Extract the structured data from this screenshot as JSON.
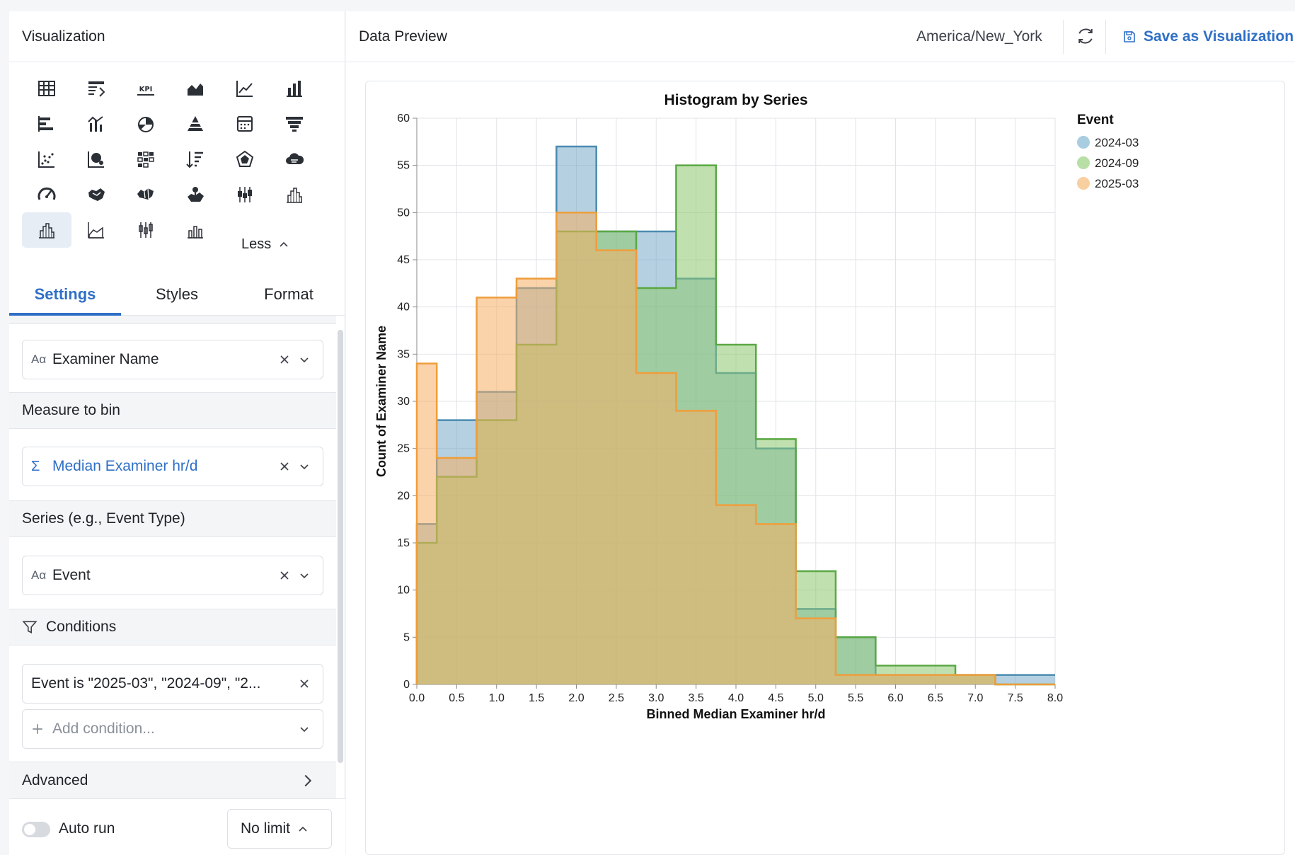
{
  "left_panel": {
    "title": "Visualization",
    "less_label": "Less",
    "viz_types": [
      {
        "icon": "table-icon"
      },
      {
        "icon": "pivot-table-icon"
      },
      {
        "icon": "kpi-icon",
        "label": "KPI"
      },
      {
        "icon": "area-chart-icon"
      },
      {
        "icon": "line-chart-icon"
      },
      {
        "icon": "bar-chart-icon"
      },
      {
        "icon": "horizontal-bar-icon"
      },
      {
        "icon": "combo-chart-icon"
      },
      {
        "icon": "pie-chart-icon"
      },
      {
        "icon": "pyramid-icon"
      },
      {
        "icon": "calendar-icon"
      },
      {
        "icon": "funnel-icon"
      },
      {
        "icon": "scatter-icon"
      },
      {
        "icon": "bubble-icon"
      },
      {
        "icon": "heatmap-icon"
      },
      {
        "icon": "sorted-bar-icon"
      },
      {
        "icon": "radar-icon"
      },
      {
        "icon": "word-cloud-icon"
      },
      {
        "icon": "gauge-icon"
      },
      {
        "icon": "map-icon"
      },
      {
        "icon": "region-map-icon"
      },
      {
        "icon": "geo-map-icon"
      },
      {
        "icon": "box-plot-icon"
      },
      {
        "icon": "histogram-icon"
      },
      {
        "icon": "histogram-selected-icon",
        "selected": true
      },
      {
        "icon": "area-line-icon"
      },
      {
        "icon": "box-plot-alt-icon"
      },
      {
        "icon": "step-bar-icon"
      }
    ],
    "tabs": [
      "Settings",
      "Styles",
      "Format"
    ],
    "active_tab": "Settings",
    "fields": {
      "category": {
        "type": "Aα",
        "value": "Examiner Name"
      },
      "measure_section": "Measure to bin",
      "measure": {
        "type": "Σ",
        "value": "Median Examiner hr/d"
      },
      "series_section": "Series (e.g., Event Type)",
      "series": {
        "type": "Aα",
        "value": "Event"
      },
      "conditions_section": "Conditions",
      "condition": "Event is \"2025-03\", \"2024-09\", \"2...",
      "add_condition_placeholder": "Add condition...",
      "advanced_section": "Advanced"
    },
    "bottom": {
      "auto_run_label": "Auto run",
      "auto_run": false,
      "limit": "No limit"
    }
  },
  "right_panel": {
    "title": "Data Preview",
    "timezone": "America/New_York",
    "save_label": "Save as Visualization"
  },
  "colors": {
    "accent": "#2f6fc6",
    "series_2024_03": "#4a8bb0",
    "series_2024_09": "#5aa844",
    "series_2025_03": "#ef9e3c"
  },
  "chart_data": {
    "type": "histogram",
    "title": "Histogram by Series",
    "xlabel": "Binned Median Examiner hr/d",
    "ylabel": "Count of Examiner Name",
    "legend_title": "Event",
    "legend_position": "top-right",
    "xlim": [
      0,
      8
    ],
    "ylim": [
      0,
      60
    ],
    "x_ticks": [
      "0.0",
      "0.5",
      "1.0",
      "1.5",
      "2.0",
      "2.5",
      "3.0",
      "3.5",
      "4.0",
      "4.5",
      "5.0",
      "5.5",
      "6.0",
      "6.5",
      "7.0",
      "7.5",
      "8.0"
    ],
    "y_ticks": [
      "0",
      "5",
      "10",
      "15",
      "20",
      "25",
      "30",
      "35",
      "40",
      "45",
      "50",
      "55",
      "60"
    ],
    "grid": true,
    "bin_edges": [
      0,
      0.25,
      0.75,
      1.25,
      1.75,
      2.25,
      2.75,
      3.25,
      3.75,
      4.25,
      4.75,
      5.25,
      5.75,
      6.25,
      6.75,
      7.25,
      7.75,
      8.0
    ],
    "series": [
      {
        "name": "2024-03",
        "values": [
          17,
          28,
          31,
          42,
          57,
          48,
          48,
          43,
          33,
          25,
          8,
          5,
          1,
          1,
          1,
          1,
          1
        ]
      },
      {
        "name": "2024-09",
        "values": [
          15,
          22,
          28,
          36,
          48,
          48,
          42,
          55,
          36,
          26,
          12,
          5,
          2,
          2,
          1,
          0,
          0
        ]
      },
      {
        "name": "2025-03",
        "values": [
          34,
          24,
          41,
          43,
          50,
          46,
          33,
          29,
          19,
          17,
          7,
          1,
          1,
          1,
          1,
          0,
          0
        ]
      }
    ]
  }
}
